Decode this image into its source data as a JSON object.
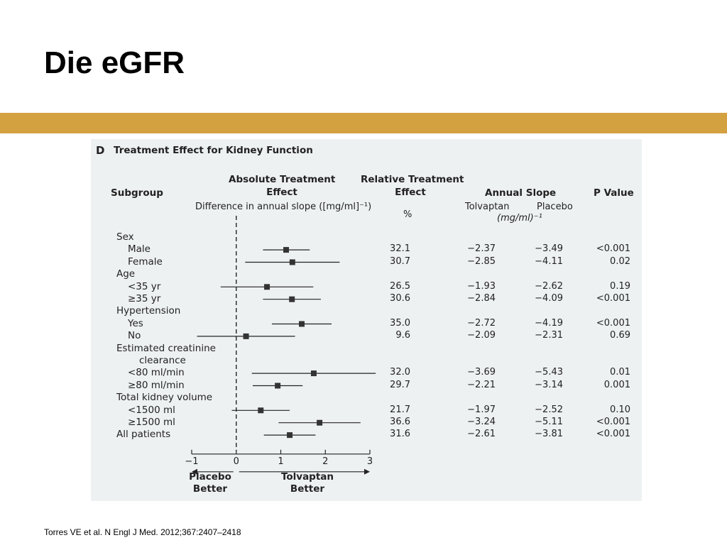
{
  "slide": {
    "title": "Die eGFR",
    "citation": "Torres VE et al. N Engl J Med. 2012;367:2407–2418",
    "accent_color": "#d3a140"
  },
  "figure": {
    "panel_letter": "D",
    "panel_title": "Treatment Effect for Kidney Function",
    "headers": {
      "subgroup": "Subgroup",
      "absolute_line1": "Absolute Treatment",
      "absolute_line2": "Effect",
      "absolute_sub": "Difference in annual slope ([mg/ml]⁻¹)",
      "relative_line1": "Relative Treatment",
      "relative_line2": "Effect",
      "relative_unit": "%",
      "annual_slope": "Annual Slope",
      "tolvaptan": "Tolvaptan",
      "placebo": "Placebo",
      "slope_unit": "(mg/ml)⁻¹",
      "p_value": "P Value"
    },
    "x_axis": {
      "ticks": [
        "−1",
        "0",
        "1",
        "2",
        "3"
      ],
      "placebo_better_1": "Placebo",
      "placebo_better_2": "Better",
      "tolvaptan_better_1": "Tolvaptan",
      "tolvaptan_better_2": "Better"
    }
  },
  "chart_data": {
    "type": "forest",
    "x_range": [
      -1,
      3
    ],
    "reference_line": 0,
    "rows": [
      {
        "label": "Sex",
        "indent": 0,
        "header": true
      },
      {
        "label": "Male",
        "indent": 1,
        "est": 1.12,
        "lo": 0.6,
        "hi": 1.65,
        "relative": "32.1",
        "tolvaptan": "−2.37",
        "placebo": "−3.49",
        "p": "<0.001"
      },
      {
        "label": "Female",
        "indent": 1,
        "est": 1.26,
        "lo": 0.2,
        "hi": 2.32,
        "relative": "30.7",
        "tolvaptan": "−2.85",
        "placebo": "−4.11",
        "p": "0.02"
      },
      {
        "label": "Age",
        "indent": 0,
        "header": true
      },
      {
        "label": "<35 yr",
        "indent": 1,
        "est": 0.69,
        "lo": -0.35,
        "hi": 1.73,
        "relative": "26.5",
        "tolvaptan": "−1.93",
        "placebo": "−2.62",
        "p": "0.19"
      },
      {
        "label": "≥35 yr",
        "indent": 1,
        "est": 1.25,
        "lo": 0.6,
        "hi": 1.9,
        "relative": "30.6",
        "tolvaptan": "−2.84",
        "placebo": "−4.09",
        "p": "<0.001"
      },
      {
        "label": "Hypertension",
        "indent": 0,
        "header": true
      },
      {
        "label": "Yes",
        "indent": 1,
        "est": 1.47,
        "lo": 0.8,
        "hi": 2.14,
        "relative": "35.0",
        "tolvaptan": "−2.72",
        "placebo": "−4.19",
        "p": "<0.001"
      },
      {
        "label": "No",
        "indent": 1,
        "est": 0.22,
        "lo": -0.88,
        "hi": 1.32,
        "relative": "9.6",
        "tolvaptan": "−2.09",
        "placebo": "−2.31",
        "p": "0.69"
      },
      {
        "label": "Estimated creatinine",
        "indent": 0,
        "header": true
      },
      {
        "label": "clearance",
        "indent": 2,
        "header": true
      },
      {
        "label": "<80 ml/min",
        "indent": 1,
        "est": 1.74,
        "lo": 0.35,
        "hi": 3.13,
        "relative": "32.0",
        "tolvaptan": "−3.69",
        "placebo": "−5.43",
        "p": "0.01"
      },
      {
        "label": "≥80 ml/min",
        "indent": 1,
        "est": 0.93,
        "lo": 0.37,
        "hi": 1.49,
        "relative": "29.7",
        "tolvaptan": "−2.21",
        "placebo": "−3.14",
        "p": "0.001"
      },
      {
        "label": "Total kidney volume",
        "indent": 0,
        "header": true
      },
      {
        "label": "<1500 ml",
        "indent": 1,
        "est": 0.55,
        "lo": -0.1,
        "hi": 1.2,
        "relative": "21.7",
        "tolvaptan": "−1.97",
        "placebo": "−2.52",
        "p": "0.10"
      },
      {
        "label": "≥1500 ml",
        "indent": 1,
        "est": 1.87,
        "lo": 0.95,
        "hi": 2.79,
        "relative": "36.6",
        "tolvaptan": "−3.24",
        "placebo": "−5.11",
        "p": "<0.001"
      },
      {
        "label": "All patients",
        "indent": 0,
        "est": 1.2,
        "lo": 0.62,
        "hi": 1.78,
        "relative": "31.6",
        "tolvaptan": "−2.61",
        "placebo": "−3.81",
        "p": "<0.001"
      }
    ]
  }
}
